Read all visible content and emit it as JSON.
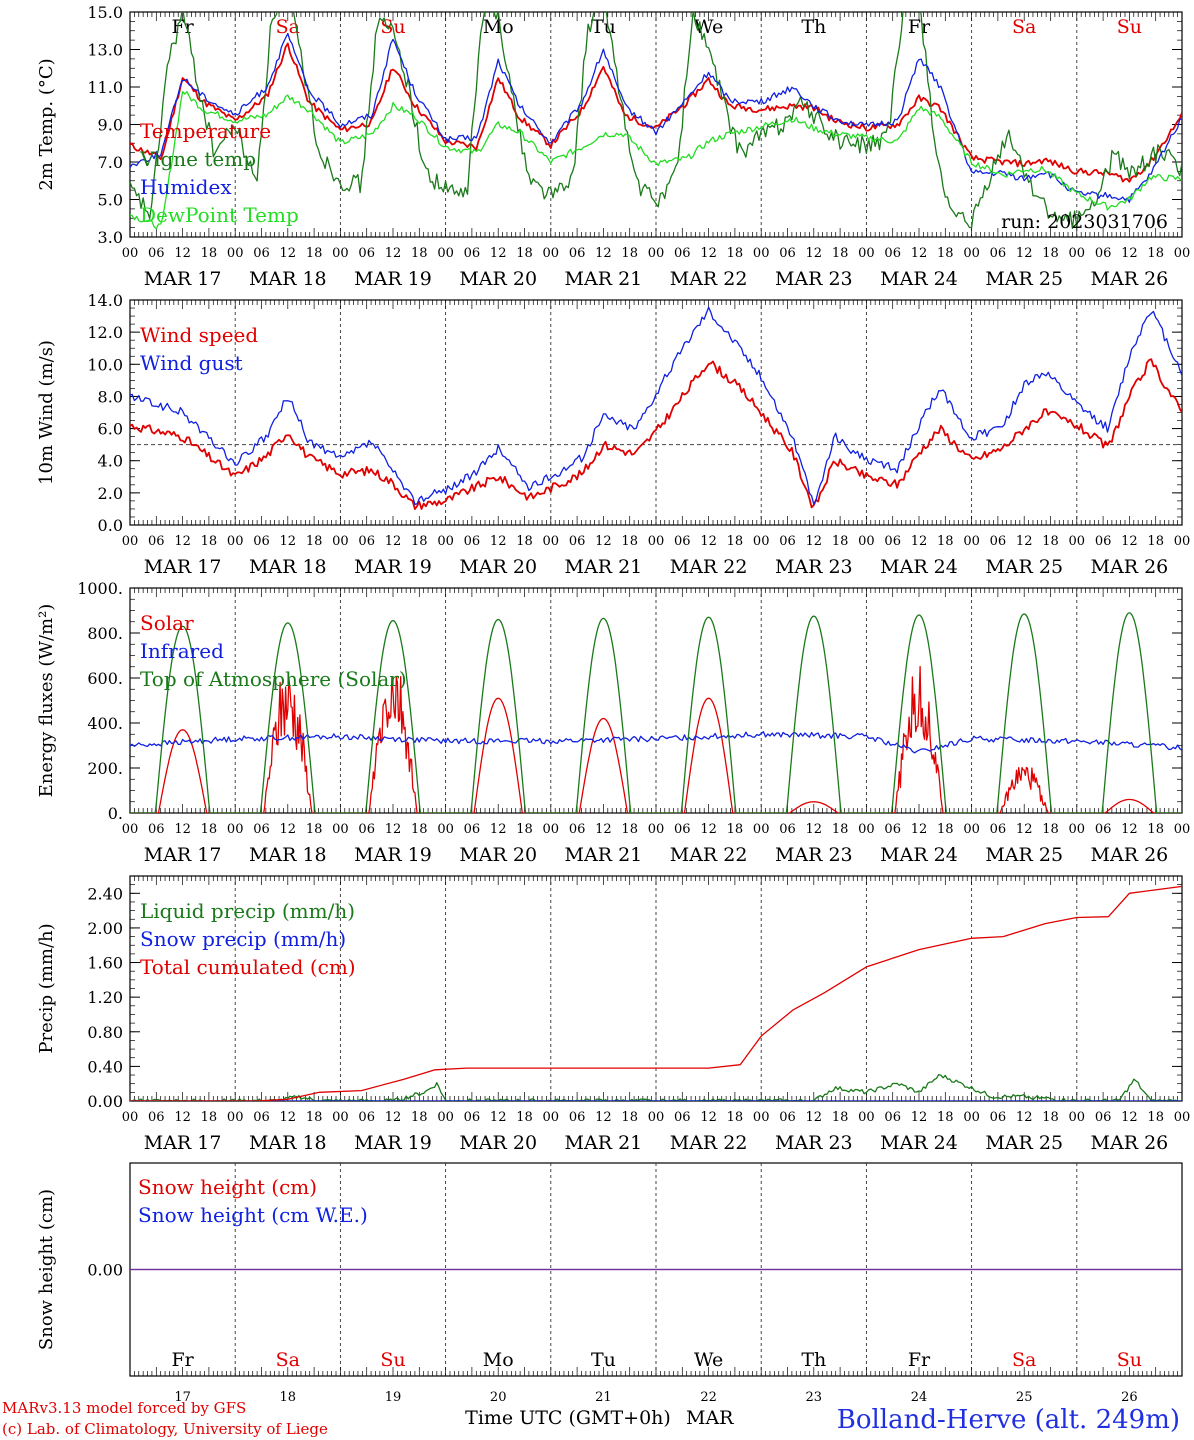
{
  "run_label": "run: 2023031706",
  "xaxis_label": "Time UTC (GMT+0h)",
  "month_label": "MAR",
  "location": "Bolland-Herve (alt. 249m)",
  "footer": [
    "MARv3.13 model forced by GFS",
    "(c) Lab. of Climatology, University of Liege"
  ],
  "hour_ticks": [
    "00",
    "06",
    "12",
    "18"
  ],
  "end_hour": "00",
  "days": [
    {
      "weekday": "Fr",
      "weekend": false,
      "date": "MAR 17",
      "num": "17"
    },
    {
      "weekday": "Sa",
      "weekend": true,
      "date": "MAR 18",
      "num": "18"
    },
    {
      "weekday": "Su",
      "weekend": true,
      "date": "MAR 19",
      "num": "19"
    },
    {
      "weekday": "Mo",
      "weekend": false,
      "date": "MAR 20",
      "num": "20"
    },
    {
      "weekday": "Tu",
      "weekend": false,
      "date": "MAR 21",
      "num": "21"
    },
    {
      "weekday": "We",
      "weekend": false,
      "date": "MAR 22",
      "num": "22"
    },
    {
      "weekday": "Th",
      "weekend": false,
      "date": "MAR 23",
      "num": "23"
    },
    {
      "weekday": "Fr",
      "weekend": false,
      "date": "MAR 24",
      "num": "24"
    },
    {
      "weekday": "Sa",
      "weekend": true,
      "date": "MAR 25",
      "num": "25"
    },
    {
      "weekday": "Su",
      "weekend": true,
      "date": "MAR 26",
      "num": "26"
    }
  ],
  "colors": {
    "red": "#e00000",
    "blue": "#1020e0",
    "green": "#1a7a1a",
    "lightgreen": "#22dd22",
    "purple": "#7030a0"
  },
  "chart_data": [
    {
      "type": "line",
      "ylabel": "2m Temp. (°C)",
      "ylim": [
        3,
        15
      ],
      "yticks": [
        "3.0",
        "5.0",
        "7.0",
        "9.0",
        "11.0",
        "13.0",
        "15.0"
      ],
      "series": [
        {
          "name": "Temperature",
          "color": "red",
          "x": [
            0,
            0.3,
            0.5,
            0.7,
            1,
            1.3,
            1.5,
            1.7,
            2,
            2.3,
            2.5,
            2.7,
            3,
            3.3,
            3.5,
            3.7,
            4,
            4.3,
            4.5,
            4.7,
            5,
            5.3,
            5.5,
            5.7,
            6,
            6.3,
            6.5,
            6.7,
            7,
            7.3,
            7.5,
            7.7,
            8,
            8.3,
            8.5,
            8.7,
            9,
            9.3,
            9.5,
            9.7,
            10
          ],
          "y": [
            7.9,
            7.2,
            11.5,
            10.2,
            9.2,
            10.5,
            13.3,
            10.2,
            8.7,
            9.1,
            12.1,
            10.1,
            8.1,
            7.8,
            11.5,
            9.4,
            7.9,
            9.8,
            12.1,
            9.5,
            8.8,
            10.2,
            11.4,
            10,
            9.8,
            10,
            9.9,
            9.2,
            8.8,
            9,
            10.4,
            9.9,
            7.2,
            7,
            6.9,
            7.1,
            6.5,
            6.4,
            6,
            7,
            9.5
          ]
        },
        {
          "name": "Vigne temp",
          "color": "green",
          "x": [
            0,
            0.2,
            0.35,
            0.5,
            0.65,
            0.8,
            1,
            1.2,
            1.35,
            1.5,
            1.65,
            1.8,
            2,
            2.2,
            2.35,
            2.5,
            2.65,
            2.8,
            3,
            3.2,
            3.35,
            3.5,
            3.65,
            3.8,
            4,
            4.2,
            4.35,
            4.5,
            4.65,
            4.8,
            5,
            5.2,
            5.35,
            5.5,
            5.65,
            5.8,
            6,
            6.2,
            6.35,
            6.5,
            6.65,
            6.8,
            7,
            7.2,
            7.35,
            7.5,
            7.65,
            7.8,
            8,
            8.2,
            8.35,
            8.5,
            8.65,
            8.8,
            9,
            9.2,
            9.35,
            9.5,
            9.65,
            9.8,
            10
          ],
          "y": [
            5.5,
            4.2,
            12,
            15,
            11,
            7.5,
            9,
            5.8,
            14.8,
            16,
            12,
            7.5,
            6,
            5.8,
            14.5,
            14,
            11,
            6.5,
            5.5,
            5.2,
            14.8,
            15,
            10,
            6,
            5.3,
            5.8,
            14,
            16,
            11,
            6,
            4.8,
            6.5,
            15,
            13,
            10,
            7.4,
            8.5,
            9,
            10.2,
            9.5,
            8.5,
            8,
            7.9,
            8.2,
            15,
            16,
            8,
            4,
            3.7,
            6.5,
            8.5,
            6.5,
            5,
            3.8,
            4,
            5,
            7.5,
            6.4,
            7,
            7.6,
            6.5
          ]
        },
        {
          "name": "Humidex",
          "color": "blue",
          "x": [
            0,
            0.3,
            0.5,
            0.7,
            1,
            1.3,
            1.5,
            1.7,
            2,
            2.3,
            2.5,
            2.7,
            3,
            3.3,
            3.5,
            3.7,
            4,
            4.3,
            4.5,
            4.7,
            5,
            5.3,
            5.5,
            5.7,
            6,
            6.3,
            6.5,
            6.7,
            7,
            7.3,
            7.5,
            7.7,
            8,
            8.3,
            8.5,
            8.7,
            9,
            9.3,
            9.5,
            9.7,
            10
          ],
          "y": [
            6.8,
            7.5,
            11.5,
            10.5,
            9.5,
            11,
            13.8,
            10.8,
            9,
            9.5,
            13.6,
            10.8,
            8.2,
            8.3,
            12.4,
            10,
            8,
            10.2,
            13,
            10,
            8.6,
            10.4,
            11.8,
            10.3,
            10.2,
            11,
            10,
            9.3,
            8.9,
            9.2,
            12.6,
            11,
            6.4,
            6.4,
            6.1,
            6.5,
            5.3,
            5.2,
            5,
            6.3,
            9.4
          ]
        },
        {
          "name": "DewPoint Temp",
          "color": "lightgreen",
          "x": [
            0,
            0.3,
            0.5,
            0.7,
            1,
            1.3,
            1.5,
            1.7,
            2,
            2.3,
            2.5,
            2.7,
            3,
            3.3,
            3.5,
            3.7,
            4,
            4.3,
            4.5,
            4.7,
            5,
            5.3,
            5.5,
            5.7,
            6,
            6.3,
            6.5,
            6.7,
            7,
            7.3,
            7.5,
            7.7,
            8,
            8.3,
            8.5,
            8.7,
            9,
            9.3,
            9.5,
            9.7,
            10
          ],
          "y": [
            4.2,
            3.5,
            10.8,
            9.8,
            9.2,
            9.5,
            10.5,
            9.8,
            8,
            8.5,
            10,
            9.5,
            7.8,
            7.5,
            9,
            8.6,
            7,
            7.8,
            8.5,
            8.5,
            6.9,
            7.2,
            8.1,
            8.5,
            8.9,
            9.3,
            8.8,
            8.5,
            8.3,
            8.1,
            9.9,
            9.4,
            7,
            6.3,
            6.6,
            6.6,
            5.3,
            4.6,
            5,
            6.2,
            6.1
          ]
        }
      ]
    },
    {
      "type": "line",
      "ylabel": "10m Wind (m/s)",
      "ylim": [
        0,
        14
      ],
      "refline": 5,
      "yticks": [
        "0.0",
        "2.0",
        "4.0",
        "6.0",
        "8.0",
        "10.0",
        "12.0",
        "14.0"
      ],
      "series": [
        {
          "name": "Wind speed",
          "color": "red",
          "x": [
            0,
            0.5,
            1,
            1.3,
            1.5,
            1.7,
            2,
            2.3,
            2.5,
            2.7,
            3,
            3.3,
            3.5,
            3.8,
            4,
            4.3,
            4.5,
            4.8,
            5,
            5.3,
            5.5,
            5.8,
            6,
            6.3,
            6.5,
            6.7,
            7,
            7.3,
            7.5,
            7.7,
            8,
            8.3,
            8.5,
            8.7,
            9,
            9.3,
            9.5,
            9.7,
            10
          ],
          "y": [
            6.2,
            5.5,
            3,
            4.3,
            5.8,
            4.2,
            3.2,
            3.4,
            2.6,
            1.2,
            1.5,
            2.4,
            3,
            1.7,
            2.3,
            3.2,
            5,
            4.4,
            5.8,
            8.4,
            10.2,
            8.5,
            7,
            4.5,
            1,
            4,
            3,
            2.5,
            4.5,
            6,
            4,
            4.8,
            6,
            7,
            6.2,
            4.8,
            8,
            10.2,
            7
          ]
        },
        {
          "name": "Wind gust",
          "color": "blue",
          "x": [
            0,
            0.5,
            1,
            1.3,
            1.5,
            1.7,
            2,
            2.3,
            2.5,
            2.7,
            3,
            3.3,
            3.5,
            3.8,
            4,
            4.3,
            4.5,
            4.8,
            5,
            5.3,
            5.5,
            5.8,
            6,
            6.3,
            6.5,
            6.7,
            7,
            7.3,
            7.5,
            7.7,
            8,
            8.3,
            8.5,
            8.7,
            9,
            9.3,
            9.5,
            9.7,
            10
          ],
          "y": [
            8,
            7,
            3.8,
            5.5,
            8,
            5.2,
            4.1,
            5.2,
            3.3,
            1.5,
            2.2,
            3.3,
            4.8,
            2.3,
            3,
            4.2,
            6.8,
            6,
            8.2,
            11.5,
            13.4,
            11,
            9.2,
            5.5,
            1.2,
            5.5,
            4,
            3.5,
            6.2,
            8.5,
            5.4,
            6.2,
            8.8,
            9.5,
            7.5,
            6,
            10.5,
            13.5,
            9.5
          ]
        }
      ]
    },
    {
      "type": "line",
      "ylabel": "Energy fluxes (W/m²)",
      "ylim": [
        0,
        1000
      ],
      "yticks": [
        "0.",
        "200.",
        "400.",
        "600.",
        "800.",
        "1000."
      ],
      "peaks_toa": [
        830,
        845,
        855,
        860,
        865,
        870,
        875,
        880,
        885,
        890
      ],
      "series": [
        {
          "name": "Solar",
          "color": "red",
          "peaks": [
            370,
            580,
            600,
            510,
            420,
            510,
            50,
            580,
            200,
            60
          ]
        },
        {
          "name": "Infrared",
          "color": "blue",
          "x": [
            0,
            1,
            2,
            3,
            4,
            5,
            6,
            7,
            7.5,
            8,
            9,
            10
          ],
          "y": [
            300,
            330,
            340,
            320,
            320,
            330,
            350,
            340,
            270,
            330,
            320,
            290
          ]
        },
        {
          "name": "Top of Atmosphere (Solar)",
          "color": "green"
        }
      ]
    },
    {
      "type": "line",
      "ylabel": "Precip (mm/h)",
      "ylim": [
        0,
        2.6
      ],
      "yticks": [
        "0.00",
        "0.40",
        "0.80",
        "1.20",
        "1.60",
        "2.00",
        "2.40"
      ],
      "series": [
        {
          "name": "Liquid precip (mm/h)",
          "color": "green",
          "x": [
            1.4,
            1.6,
            1.8,
            2.5,
            2.8,
            2.92,
            3,
            6.5,
            6.7,
            7,
            7.3,
            7.5,
            7.7,
            8.2,
            8.5,
            9,
            9.4,
            9.55,
            9.7
          ],
          "y": [
            0,
            0.05,
            0,
            0,
            0.1,
            0.2,
            0,
            0,
            0.15,
            0.1,
            0.2,
            0.1,
            0.3,
            0.05,
            0.05,
            0,
            0,
            0.25,
            0
          ]
        },
        {
          "name": "Snow precip (mm/h)",
          "color": "blue",
          "x": [
            0,
            10
          ],
          "y": [
            0,
            0
          ]
        },
        {
          "name": "Total cumulated (cm)",
          "color": "red",
          "x": [
            0,
            1.2,
            1.5,
            1.8,
            2.2,
            2.6,
            2.9,
            3.2,
            5.5,
            5.8,
            6,
            6.3,
            6.6,
            7,
            7.5,
            8,
            8.3,
            8.7,
            9,
            9.3,
            9.5,
            10
          ],
          "y": [
            0,
            0,
            0.02,
            0.1,
            0.12,
            0.25,
            0.36,
            0.38,
            0.38,
            0.42,
            0.75,
            1.05,
            1.25,
            1.55,
            1.75,
            1.88,
            1.9,
            2.05,
            2.12,
            2.13,
            2.4,
            2.48
          ]
        }
      ]
    },
    {
      "type": "line",
      "ylabel": "Snow height (cm)",
      "ylim": [
        -1,
        1
      ],
      "yticks": [
        "0.00"
      ],
      "series": [
        {
          "name": "Snow height (cm)",
          "color": "red",
          "x": [
            0,
            10
          ],
          "y": [
            0,
            0
          ]
        },
        {
          "name": "Snow height (cm W.E.)",
          "color": "blue",
          "x": [
            0,
            10
          ],
          "y": [
            0,
            0
          ]
        }
      ]
    }
  ]
}
